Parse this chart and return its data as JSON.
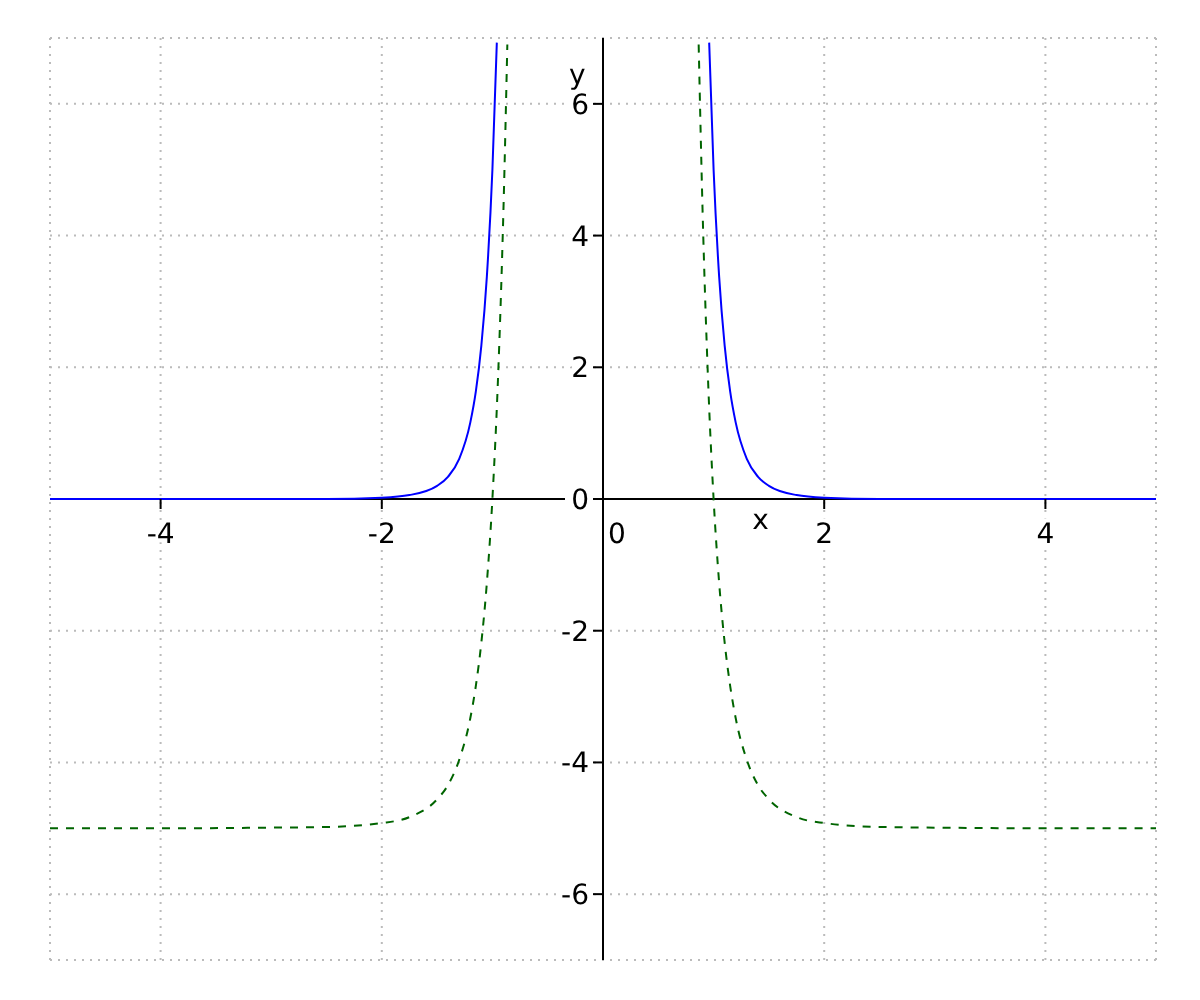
{
  "chart_data": {
    "type": "line",
    "xlabel": "x",
    "ylabel": "y",
    "xlim": [
      -5,
      5
    ],
    "ylim": [
      -7,
      7
    ],
    "xticks": [
      -4,
      -2,
      0,
      2,
      4
    ],
    "yticks": [
      -6,
      -4,
      -2,
      0,
      2,
      4,
      6
    ],
    "grid": true,
    "series": [
      {
        "color": "#0000ff",
        "line_style": "solid",
        "x": [
          -5,
          -4,
          -3,
          -2.5,
          -2,
          -1.75,
          -1.5,
          -1.4,
          -1.3,
          -1.2,
          -1.15,
          -1.1,
          -1.05,
          -1.0,
          -0.96,
          0,
          0.96,
          1.0,
          1.05,
          1.1,
          1.15,
          1.2,
          1.3,
          1.4,
          1.5,
          1.75,
          2,
          2.5,
          3,
          4,
          5
        ],
        "values": [
          0,
          0,
          0,
          0,
          0.02,
          0.06,
          0.2,
          0.34,
          0.61,
          1.16,
          1.63,
          2.33,
          3.38,
          5,
          6.93,
          null,
          6.93,
          5,
          3.38,
          2.33,
          1.63,
          1.16,
          0.61,
          0.34,
          0.2,
          0.06,
          0.02,
          0,
          0,
          0,
          0
        ]
      },
      {
        "color": "#006400",
        "line_style": "dashed",
        "x": [
          -5,
          -4,
          -3,
          -2.5,
          -2,
          -1.75,
          -1.5,
          -1.4,
          -1.3,
          -1.2,
          -1.15,
          -1.1,
          -1.05,
          -1.0,
          -0.95,
          -0.9,
          -0.865,
          0,
          0.865,
          0.9,
          0.95,
          1.0,
          1.05,
          1.1,
          1.15,
          1.2,
          1.3,
          1.4,
          1.5,
          1.75,
          2,
          2.5,
          3,
          4,
          5
        ],
        "values": [
          -5,
          -5,
          -4.99,
          -4.98,
          -4.92,
          -4.83,
          -4.56,
          -4.34,
          -3.96,
          -3.33,
          -2.84,
          -2.18,
          -1.27,
          0,
          1.8,
          4.4,
          6.9,
          null,
          6.9,
          4.4,
          1.8,
          0,
          -1.27,
          -2.18,
          -2.84,
          -3.33,
          -3.96,
          -4.34,
          -4.56,
          -4.83,
          -4.92,
          -4.98,
          -4.99,
          -5,
          -5
        ]
      }
    ]
  }
}
